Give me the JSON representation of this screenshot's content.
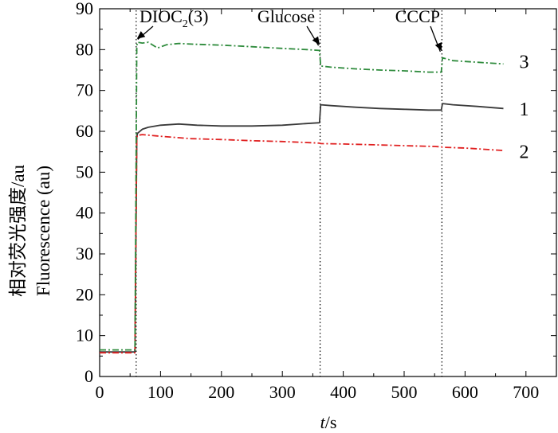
{
  "chart_data": {
    "type": "line",
    "xlabel_italic": "t",
    "xlabel_rest": "/s",
    "ylabel_line1": "相对荧光强度/au",
    "ylabel_line2": "Fluorescence (au)",
    "xlim": [
      0,
      750
    ],
    "ylim": [
      0,
      90
    ],
    "xticks": [
      0,
      100,
      200,
      300,
      400,
      500,
      600,
      700
    ],
    "yticks": [
      0,
      10,
      20,
      30,
      40,
      50,
      60,
      70,
      80,
      90
    ],
    "xtick_labels": [
      "0",
      "100",
      "200",
      "300",
      "400",
      "500",
      "600",
      "700"
    ],
    "ytick_labels": [
      "0",
      "10",
      "20",
      "30",
      "40",
      "50",
      "60",
      "70",
      "80",
      "90"
    ],
    "events": [
      {
        "x": 60,
        "label_main": "DIOC",
        "label_sub": "2",
        "label_tail": "(3)",
        "arrow_tip_y": 82.5
      },
      {
        "x": 362,
        "label_main": "Glucose",
        "label_sub": "",
        "label_tail": "",
        "arrow_tip_y": 81
      },
      {
        "x": 562,
        "label_main": "CCCP",
        "label_sub": "",
        "label_tail": "",
        "arrow_tip_y": 79.5
      }
    ],
    "series": [
      {
        "name": "1",
        "color": "#3a3a3a",
        "style": "solid",
        "label_y": 65.5,
        "x": [
          0,
          58,
          61,
          62,
          70,
          80,
          100,
          130,
          160,
          200,
          250,
          300,
          340,
          361,
          363,
          380,
          420,
          460,
          500,
          540,
          561,
          563,
          580,
          620,
          663
        ],
        "y": [
          6,
          6,
          58.5,
          59.5,
          60.5,
          61,
          61.5,
          61.8,
          61.5,
          61.3,
          61.3,
          61.5,
          61.9,
          62.1,
          66.5,
          66.3,
          65.9,
          65.6,
          65.4,
          65.2,
          65.2,
          66.8,
          66.5,
          66.1,
          65.6
        ]
      },
      {
        "name": "2",
        "color": "#e02020",
        "style": "dashdot",
        "label_y": 55,
        "x": [
          0,
          58,
          61,
          62,
          70,
          100,
          150,
          200,
          250,
          300,
          350,
          361,
          363,
          400,
          450,
          500,
          550,
          561,
          563,
          600,
          663
        ],
        "y": [
          5.8,
          5.8,
          58.5,
          59,
          59.2,
          58.8,
          58.2,
          58,
          57.7,
          57.5,
          57.2,
          57.1,
          57,
          56.9,
          56.7,
          56.5,
          56.3,
          56.2,
          56.1,
          55.9,
          55.3
        ]
      },
      {
        "name": "3",
        "color": "#2e8b3c",
        "style": "dashdot",
        "label_y": 77,
        "x": [
          0,
          58,
          61,
          62,
          70,
          80,
          95,
          110,
          130,
          160,
          200,
          250,
          300,
          340,
          361,
          363,
          380,
          420,
          460,
          500,
          540,
          561,
          563,
          580,
          620,
          663
        ],
        "y": [
          6.5,
          6.5,
          81,
          81.8,
          81.6,
          81.8,
          80.4,
          81.2,
          81.5,
          81.3,
          81.1,
          80.7,
          80.3,
          80,
          79.8,
          76,
          75.7,
          75.3,
          75,
          74.8,
          74.5,
          74.5,
          78,
          77.3,
          76.9,
          76.5
        ]
      }
    ]
  }
}
